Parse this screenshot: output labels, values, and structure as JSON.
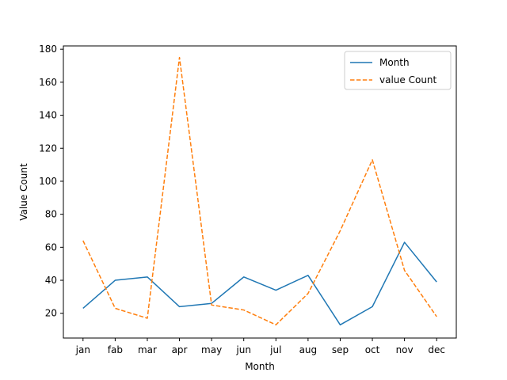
{
  "chart_data": {
    "type": "line",
    "xlabel": "Month",
    "ylabel": "Value Count",
    "categories": [
      "jan",
      "fab",
      "mar",
      "apr",
      "may",
      "jun",
      "jul",
      "aug",
      "sep",
      "oct",
      "nov",
      "dec"
    ],
    "ylim": [
      5,
      182
    ],
    "yticks": [
      20,
      40,
      60,
      80,
      100,
      120,
      140,
      160,
      180
    ],
    "grid": false,
    "legend_position": "top-right",
    "series": [
      {
        "name": "Month",
        "color": "#1f77b4",
        "style": "solid",
        "values": [
          23,
          40,
          42,
          24,
          26,
          42,
          34,
          43,
          13,
          24,
          63,
          39
        ]
      },
      {
        "name": "value Count",
        "color": "#ff7f0e",
        "style": "dashed",
        "values": [
          64,
          23,
          17,
          175,
          25,
          22,
          13,
          32,
          70,
          113,
          46,
          18
        ]
      }
    ]
  }
}
